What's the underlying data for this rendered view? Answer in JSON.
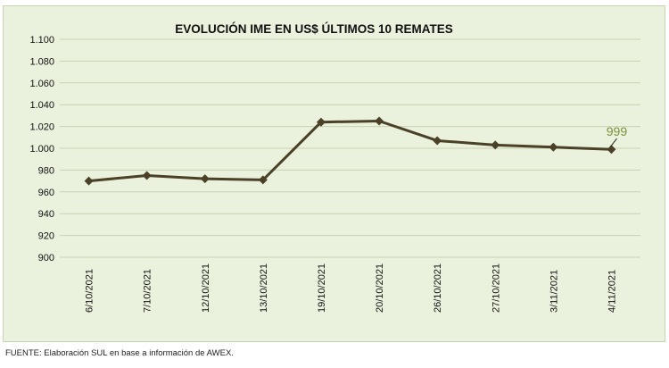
{
  "chart_data": {
    "type": "line",
    "title": "EVOLUCIÓN IME EN US$ ÚLTIMOS 10 REMATES",
    "xlabel": "",
    "ylabel": "",
    "categories": [
      "6/10/2021",
      "7/10/2021",
      "12/10/2021",
      "13/10/2021",
      "19/10/2021",
      "20/10/2021",
      "26/10/2021",
      "27/10/2021",
      "3/11/2021",
      "4/11/2021"
    ],
    "series": [
      {
        "name": "IME US$",
        "values": [
          970,
          975,
          972,
          971,
          1024,
          1025,
          1007,
          1003,
          1001,
          999
        ]
      }
    ],
    "ylim": [
      900,
      1100
    ],
    "yticks": [
      900,
      920,
      940,
      960,
      980,
      1000,
      1020,
      1040,
      1060,
      1080,
      1100
    ],
    "ytick_labels": [
      "900",
      "920",
      "940",
      "960",
      "980",
      "1.000",
      "1.020",
      "1.040",
      "1.060",
      "1.080",
      "1.100"
    ],
    "grid": true,
    "data_labels": [
      {
        "index": 9,
        "text": "999"
      }
    ],
    "colors": {
      "line": "#4a4127",
      "marker": "#4a4127",
      "grid": "#c8d2b0",
      "background": "#eaf1dd",
      "data_label": "#77933c"
    }
  },
  "footer": {
    "source": "FUENTE: Elaboración SUL en base a información de AWEX."
  }
}
